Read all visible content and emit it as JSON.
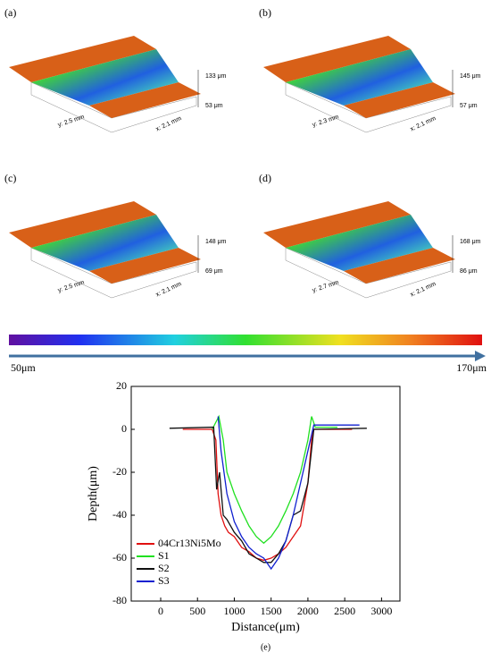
{
  "panels": [
    {
      "label": "(a)",
      "zmax": "133 μm",
      "zmin": "53 μm",
      "y_extent": "y: 2.5 mm",
      "x_extent": "x: 2.1 mm"
    },
    {
      "label": "(b)",
      "zmax": "145 μm",
      "zmin": "57 μm",
      "y_extent": "y: 2.3 mm",
      "x_extent": "x: 2.1 mm"
    },
    {
      "label": "(c)",
      "zmax": "148 μm",
      "zmin": "69 μm",
      "y_extent": "y: 2.5 mm",
      "x_extent": "x: 2.1 mm"
    },
    {
      "label": "(d)",
      "zmax": "168 μm",
      "zmin": "86 μm",
      "y_extent": "y: 2.7 mm",
      "x_extent": "x: 2.1 mm"
    }
  ],
  "colorbar": {
    "min_label": "50μm",
    "max_label": "170μm"
  },
  "chart_data": {
    "type": "line",
    "caption": "(e)",
    "x_label": "Distance(μm)",
    "y_label": "Depth(μm)",
    "xlim": [
      -400,
      3250
    ],
    "xticks": [
      0,
      500,
      1000,
      1500,
      2000,
      2500,
      3000
    ],
    "ylim": [
      -80,
      20
    ],
    "yticks": [
      20,
      0,
      -20,
      -40,
      -60,
      -80
    ],
    "legend": "lower left",
    "series": [
      {
        "name": "04Cr13Ni5Mo",
        "color": "#e01010",
        "x": [
          300,
          700,
          750,
          780,
          820,
          870,
          920,
          1000,
          1100,
          1200,
          1300,
          1400,
          1500,
          1600,
          1700,
          1800,
          1900,
          2000,
          2050,
          2080,
          2600
        ],
        "values": [
          0,
          0,
          -5,
          -30,
          -40,
          -45,
          -48,
          -50,
          -55,
          -57,
          -60,
          -61,
          -60,
          -58,
          -55,
          -50,
          -45,
          -25,
          -5,
          0,
          0
        ]
      },
      {
        "name": "S1",
        "color": "#20e020",
        "x": [
          700,
          790,
          850,
          900,
          1000,
          1100,
          1200,
          1300,
          1400,
          1500,
          1600,
          1700,
          1800,
          1900,
          2000,
          2050,
          2100,
          2400
        ],
        "values": [
          0,
          6,
          -5,
          -20,
          -30,
          -38,
          -45,
          -50,
          -53,
          -50,
          -45,
          -38,
          -30,
          -20,
          -5,
          6,
          1,
          1
        ]
      },
      {
        "name": "S2",
        "color": "#101010",
        "x": [
          120,
          720,
          760,
          800,
          850,
          900,
          1000,
          1100,
          1200,
          1300,
          1400,
          1500,
          1600,
          1700,
          1800,
          1900,
          2000,
          2080,
          2800
        ],
        "values": [
          0.5,
          1,
          -28,
          -20,
          -40,
          -42,
          -48,
          -52,
          -58,
          -60,
          -62,
          -62,
          -58,
          -52,
          -40,
          -38,
          -25,
          0,
          0.5
        ]
      },
      {
        "name": "S3",
        "color": "#1020d0",
        "x": [
          780,
          820,
          900,
          1000,
          1100,
          1200,
          1300,
          1400,
          1500,
          1600,
          1700,
          1800,
          1900,
          2000,
          2080,
          2700
        ],
        "values": [
          6,
          -10,
          -30,
          -43,
          -50,
          -55,
          -58,
          -60,
          -65,
          -60,
          -52,
          -40,
          -25,
          -10,
          2,
          2
        ]
      }
    ]
  }
}
